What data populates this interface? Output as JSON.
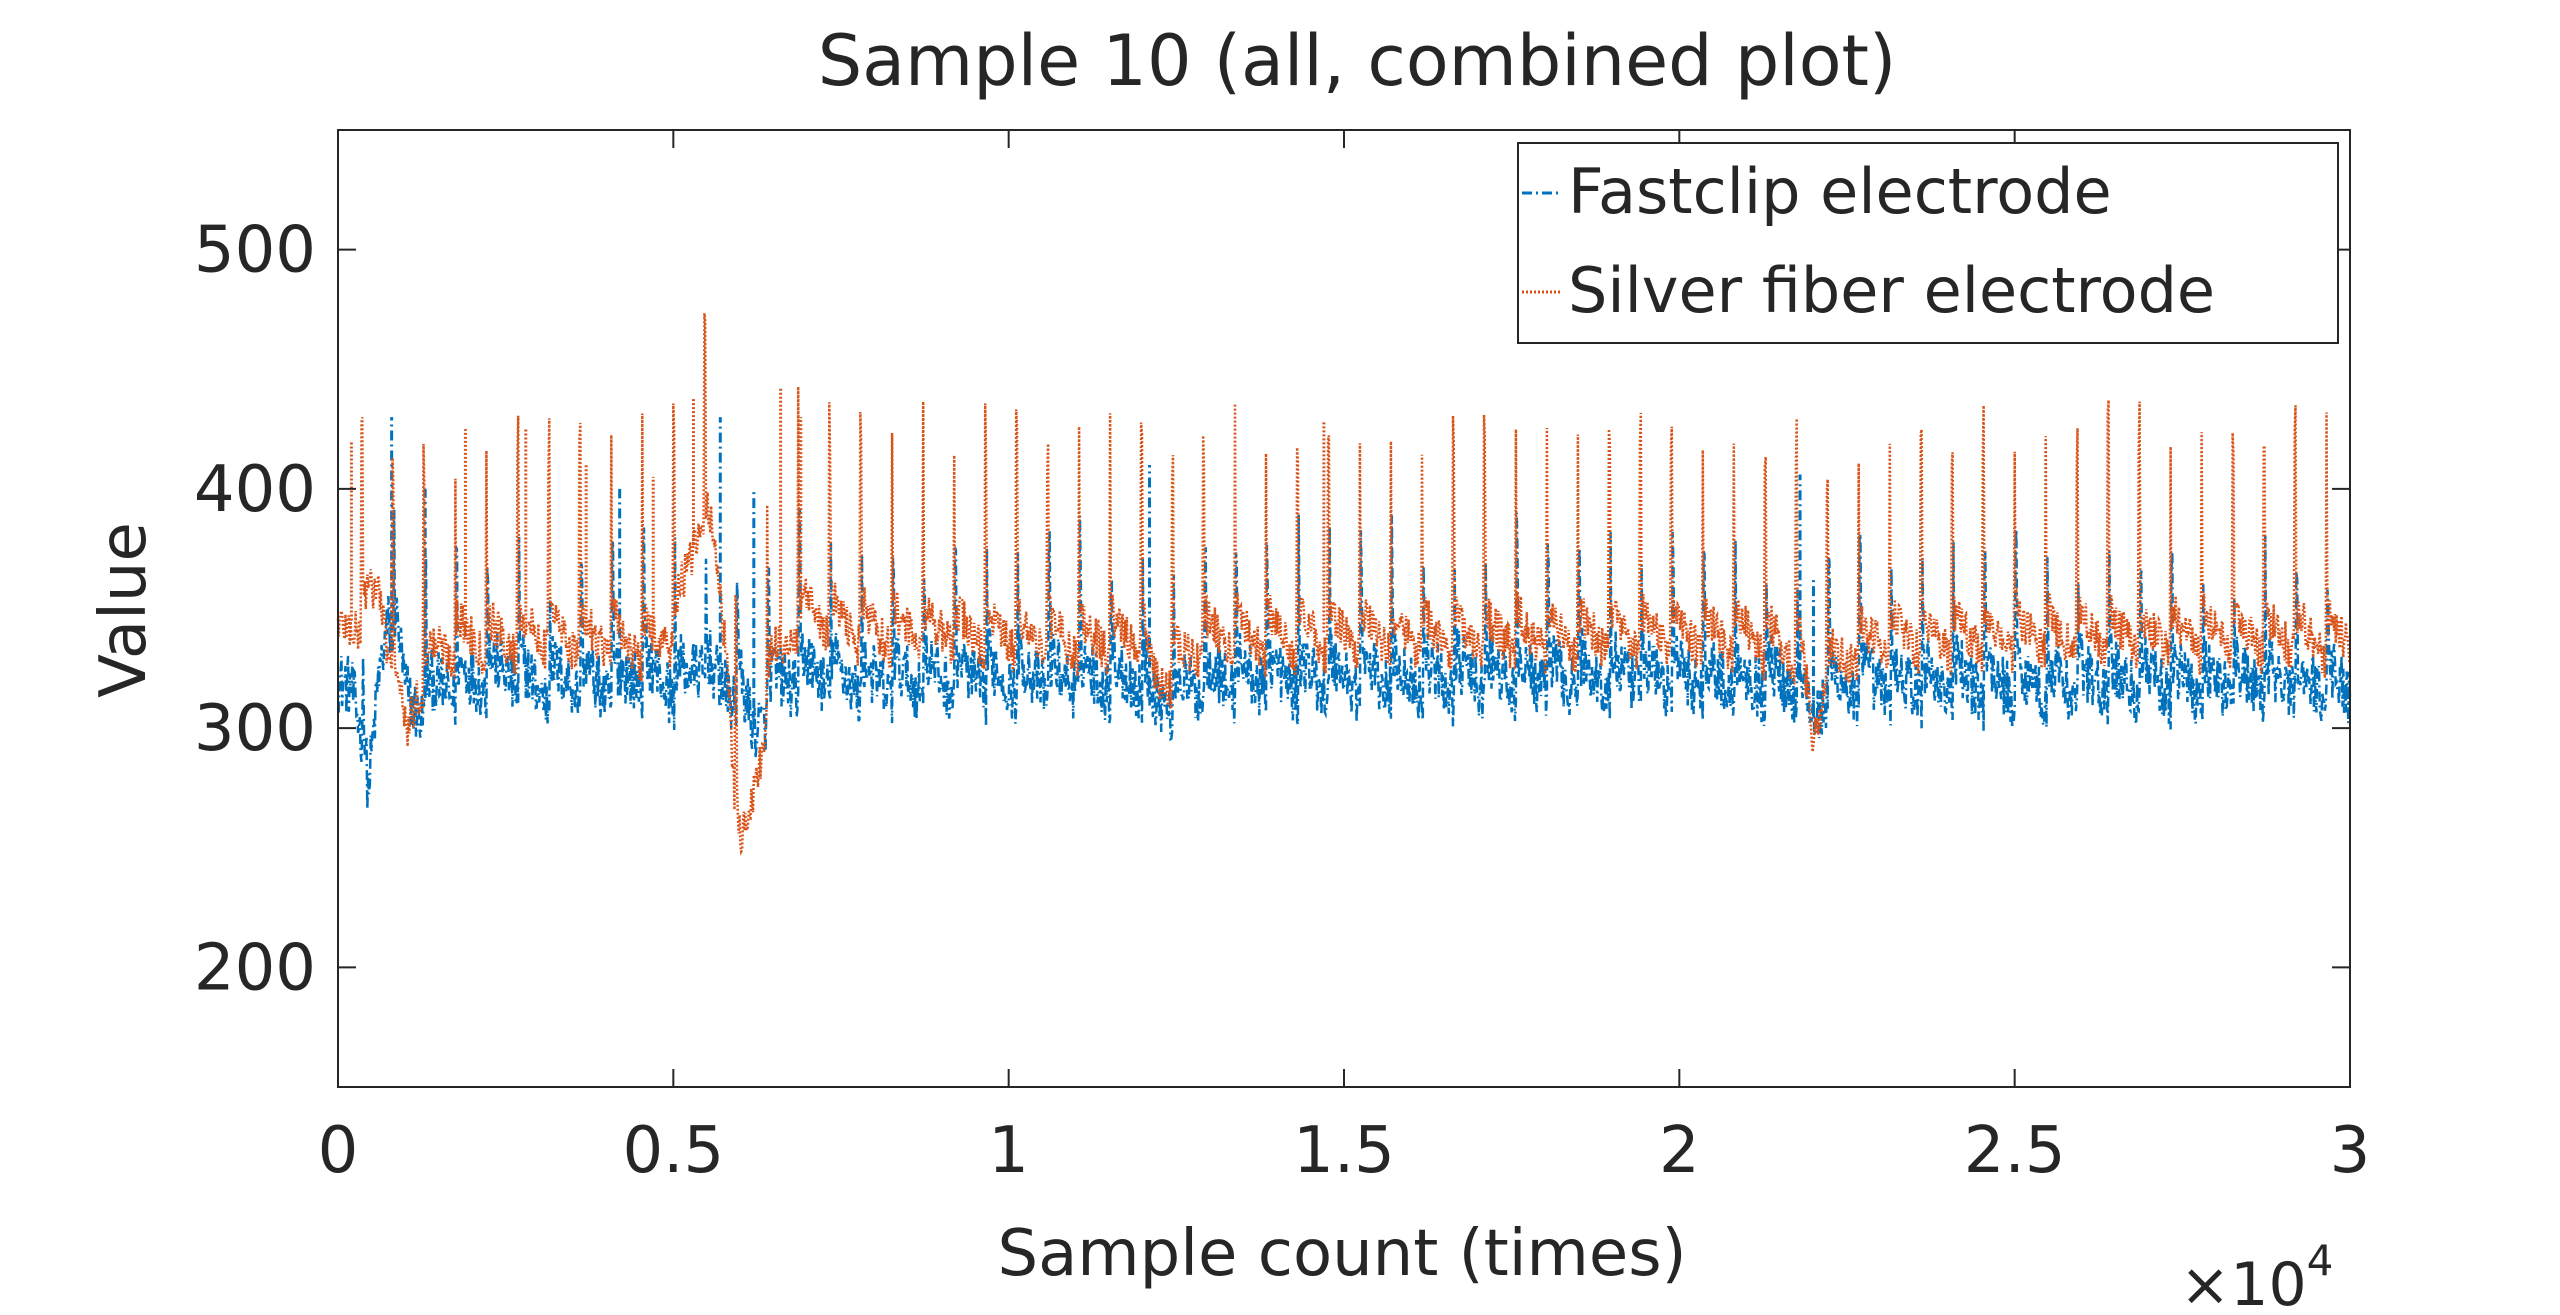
{
  "chart_data": {
    "type": "line",
    "title": "Sample 10 (all, combined plot)",
    "xlabel": "Sample count (times)",
    "ylabel": "Value",
    "x_exponent_label": "×10",
    "x_exponent_power": "4",
    "xlim": [
      0,
      3
    ],
    "ylim": [
      150,
      550
    ],
    "xticks": [
      0,
      0.5,
      1,
      1.5,
      2,
      2.5,
      3
    ],
    "xtick_labels": [
      "0",
      "0.5",
      "1",
      "1.5",
      "2",
      "2.5",
      "3"
    ],
    "yticks": [
      200,
      300,
      400,
      500
    ],
    "ytick_labels": [
      "200",
      "300",
      "400",
      "500"
    ],
    "grid": false,
    "legend_position": "top-right",
    "series": [
      {
        "name": "Fastclip electrode",
        "color": "#0072BD",
        "style": "dashdot",
        "x": [
          0,
          0.02,
          0.035,
          0.045,
          0.06,
          0.075,
          0.09,
          0.1,
          0.12,
          0.15,
          0.2,
          0.25,
          0.3,
          0.35,
          0.4,
          0.45,
          0.5,
          0.52,
          0.54,
          0.56,
          0.58,
          0.6,
          0.62,
          0.65,
          0.7,
          0.75,
          0.8,
          0.9,
          1.0,
          1.1,
          1.2,
          1.22,
          1.3,
          1.4,
          1.5,
          1.6,
          1.7,
          1.8,
          1.9,
          2.0,
          2.1,
          2.18,
          2.2,
          2.22,
          2.3,
          2.4,
          2.5,
          2.6,
          2.7,
          2.8,
          2.9,
          3.0
        ],
        "y": [
          315,
          320,
          305,
          268,
          320,
          350,
          335,
          315,
          310,
          318,
          322,
          325,
          318,
          322,
          318,
          325,
          320,
          322,
          330,
          320,
          318,
          315,
          300,
          318,
          325,
          322,
          320,
          322,
          322,
          322,
          322,
          312,
          322,
          322,
          322,
          322,
          322,
          322,
          322,
          322,
          322,
          320,
          305,
          318,
          320,
          320,
          320,
          320,
          320,
          320,
          320,
          318
        ],
        "peaks": [
          {
            "x": 0.08,
            "y": 430
          },
          {
            "x": 0.13,
            "y": 400
          },
          {
            "x": 0.42,
            "y": 400
          },
          {
            "x": 0.57,
            "y": 430
          },
          {
            "x": 0.62,
            "y": 400
          },
          {
            "x": 1.21,
            "y": 410
          },
          {
            "x": 2.18,
            "y": 406
          },
          {
            "x": 2.2,
            "y": 363
          }
        ]
      },
      {
        "name": "Silver fiber electrode",
        "color": "#D95319",
        "style": "dotted",
        "x": [
          0,
          0.02,
          0.04,
          0.06,
          0.08,
          0.1,
          0.1,
          0.12,
          0.15,
          0.2,
          0.25,
          0.3,
          0.35,
          0.4,
          0.45,
          0.5,
          0.52,
          0.54,
          0.56,
          0.58,
          0.6,
          0.62,
          0.65,
          0.7,
          0.75,
          0.8,
          0.9,
          1.0,
          1.1,
          1.2,
          1.22,
          1.3,
          1.4,
          1.5,
          1.6,
          1.7,
          1.8,
          1.9,
          2.0,
          2.1,
          2.18,
          2.2,
          2.22,
          2.3,
          2.4,
          2.5,
          2.6,
          2.7,
          2.8,
          2.9,
          3.0
        ],
        "y": [
          340,
          345,
          350,
          360,
          330,
          300,
          295,
          320,
          335,
          340,
          338,
          342,
          338,
          340,
          335,
          342,
          365,
          388,
          380,
          330,
          245,
          275,
          330,
          350,
          345,
          342,
          342,
          340,
          338,
          340,
          320,
          340,
          340,
          340,
          340,
          340,
          340,
          340,
          340,
          340,
          335,
          296,
          325,
          340,
          340,
          340,
          340,
          340,
          340,
          340,
          338
        ],
        "peaks": [
          {
            "x": 0.02,
            "y": 420
          },
          {
            "x": 0.08,
            "y": 370
          },
          {
            "x": 0.19,
            "y": 425
          },
          {
            "x": 0.28,
            "y": 425
          },
          {
            "x": 0.37,
            "y": 410
          },
          {
            "x": 0.47,
            "y": 405
          },
          {
            "x": 0.53,
            "y": 438
          },
          {
            "x": 0.66,
            "y": 442
          },
          {
            "x": 0.69,
            "y": 430
          },
          {
            "x": 1.47,
            "y": 428
          }
        ]
      }
    ]
  }
}
